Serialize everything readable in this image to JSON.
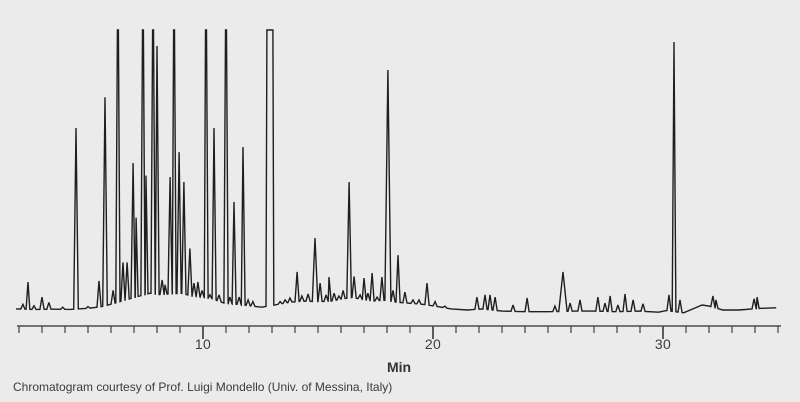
{
  "colors": {
    "background": "#ebebeb",
    "trace": "#1f1f1f",
    "axis": "#4c4c4c",
    "text": "#3a3a3a"
  },
  "labels": {
    "axis_title": "Min",
    "credit": "Chromatogram courtesy of Prof. Luigi Mondello (Univ. of Messina, Italy)"
  },
  "chart_data": {
    "type": "line",
    "title": "",
    "xlabel": "Min",
    "ylabel": "",
    "x_range": [
      2,
      35
    ],
    "x_start": 1.87,
    "x_end": 34.92,
    "x_ticks_minor_interval": 1,
    "x_ticks_minor_from": 2,
    "x_ticks_minor_to": 35,
    "x_ticks_labeled": [
      10,
      20,
      30
    ],
    "x_tick_labels": [
      "10",
      "20",
      "30"
    ],
    "grid": "off",
    "legend": "none",
    "y_axis_shown": false,
    "clip_level_note": "peaks with h=1.0 are off-scale and flat-topped at full height",
    "baseline": [
      [
        1.87,
        0.004
      ],
      [
        2.6,
        0.002
      ],
      [
        3.6,
        0.003
      ],
      [
        4.2,
        0.002
      ],
      [
        5.0,
        0.006
      ],
      [
        5.6,
        0.012
      ],
      [
        6.2,
        0.025
      ],
      [
        6.8,
        0.04
      ],
      [
        7.25,
        0.05
      ],
      [
        7.7,
        0.06
      ],
      [
        8.1,
        0.055
      ],
      [
        9.05,
        0.06
      ],
      [
        9.5,
        0.05
      ],
      [
        10.0,
        0.045
      ],
      [
        10.4,
        0.04
      ],
      [
        10.9,
        0.025
      ],
      [
        11.5,
        0.02
      ],
      [
        12.0,
        0.015
      ],
      [
        12.55,
        0.01
      ],
      [
        13.25,
        0.02
      ],
      [
        13.8,
        0.028
      ],
      [
        14.4,
        0.032
      ],
      [
        15.0,
        0.03
      ],
      [
        15.6,
        0.032
      ],
      [
        16.1,
        0.04
      ],
      [
        16.5,
        0.045
      ],
      [
        16.9,
        0.038
      ],
      [
        17.4,
        0.032
      ],
      [
        17.9,
        0.035
      ],
      [
        18.4,
        0.028
      ],
      [
        19.0,
        0.024
      ],
      [
        19.6,
        0.02
      ],
      [
        20.2,
        0.012
      ],
      [
        20.8,
        0.004
      ],
      [
        21.5,
        0.0
      ],
      [
        22.1,
        0.004
      ],
      [
        23.0,
        -0.004
      ],
      [
        24.0,
        -0.006
      ],
      [
        25.0,
        -0.006
      ],
      [
        26.2,
        -0.004
      ],
      [
        27.0,
        -0.004
      ],
      [
        28.0,
        -0.006
      ],
      [
        29.0,
        -0.004
      ],
      [
        29.8,
        -0.008
      ],
      [
        30.15,
        -0.002
      ],
      [
        30.9,
        -0.01
      ],
      [
        31.3,
        0.004
      ],
      [
        31.7,
        0.018
      ],
      [
        32.0,
        0.014
      ],
      [
        32.6,
        0.0
      ],
      [
        33.3,
        0.0
      ],
      [
        34.3,
        0.006
      ],
      [
        34.9,
        0.008
      ]
    ],
    "peaks": [
      {
        "t": 2.17,
        "h": 0.02
      },
      {
        "t": 2.39,
        "h": 0.1,
        "w": 0.08
      },
      {
        "t": 2.65,
        "h": 0.015
      },
      {
        "t": 3.0,
        "h": 0.046
      },
      {
        "t": 3.3,
        "h": 0.027
      },
      {
        "t": 3.9,
        "h": 0.01
      },
      {
        "t": 4.48,
        "h": 0.65,
        "w": 0.1
      },
      {
        "t": 5.0,
        "h": 0.012
      },
      {
        "t": 5.48,
        "h": 0.104
      },
      {
        "t": 5.74,
        "h": 0.76,
        "w": 0.1
      },
      {
        "t": 6.09,
        "h": 0.07
      },
      {
        "t": 6.3,
        "h": 1.0,
        "clip": true
      },
      {
        "t": 6.52,
        "h": 0.17
      },
      {
        "t": 6.7,
        "h": 0.17
      },
      {
        "t": 6.96,
        "h": 0.525
      },
      {
        "t": 7.09,
        "h": 0.33
      },
      {
        "t": 7.39,
        "h": 1.0,
        "clip": true
      },
      {
        "t": 7.52,
        "h": 0.48
      },
      {
        "t": 7.83,
        "h": 1.0,
        "clip": true
      },
      {
        "t": 8.0,
        "h": 0.943
      },
      {
        "t": 8.22,
        "h": 0.107
      },
      {
        "t": 8.35,
        "h": 0.09
      },
      {
        "t": 8.57,
        "h": 0.475
      },
      {
        "t": 8.74,
        "h": 1.0,
        "clip": true
      },
      {
        "t": 8.96,
        "h": 0.564
      },
      {
        "t": 9.17,
        "h": 0.457
      },
      {
        "t": 9.43,
        "h": 0.22
      },
      {
        "t": 9.61,
        "h": 0.096
      },
      {
        "t": 9.78,
        "h": 0.1
      },
      {
        "t": 9.96,
        "h": 0.07
      },
      {
        "t": 10.13,
        "h": 1.0,
        "clip": true
      },
      {
        "t": 10.3,
        "h": 0.054
      },
      {
        "t": 10.48,
        "h": 0.65
      },
      {
        "t": 10.7,
        "h": 0.054
      },
      {
        "t": 11.0,
        "h": 1.0,
        "clip": true
      },
      {
        "t": 11.17,
        "h": 0.046
      },
      {
        "t": 11.35,
        "h": 0.386
      },
      {
        "t": 11.57,
        "h": 0.046
      },
      {
        "t": 11.74,
        "h": 0.582
      },
      {
        "t": 11.96,
        "h": 0.036
      },
      {
        "t": 12.17,
        "h": 0.03
      },
      {
        "t": 12.91,
        "h": 1.0,
        "clip": true,
        "w": 0.17,
        "pw": 0.13
      },
      {
        "t": 13.35,
        "h": 0.03
      },
      {
        "t": 13.57,
        "h": 0.036
      },
      {
        "t": 13.78,
        "h": 0.043
      },
      {
        "t": 14.09,
        "h": 0.136
      },
      {
        "t": 14.3,
        "h": 0.05
      },
      {
        "t": 14.57,
        "h": 0.057
      },
      {
        "t": 14.87,
        "h": 0.257,
        "w": 0.12
      },
      {
        "t": 15.09,
        "h": 0.096
      },
      {
        "t": 15.35,
        "h": 0.054
      },
      {
        "t": 15.48,
        "h": 0.118
      },
      {
        "t": 15.7,
        "h": 0.06
      },
      {
        "t": 15.91,
        "h": 0.05
      },
      {
        "t": 16.09,
        "h": 0.07
      },
      {
        "t": 16.35,
        "h": 0.457,
        "w": 0.1
      },
      {
        "t": 16.57,
        "h": 0.12
      },
      {
        "t": 16.83,
        "h": 0.054
      },
      {
        "t": 17.0,
        "h": 0.114
      },
      {
        "t": 17.17,
        "h": 0.06
      },
      {
        "t": 17.35,
        "h": 0.132
      },
      {
        "t": 17.57,
        "h": 0.046
      },
      {
        "t": 17.78,
        "h": 0.118
      },
      {
        "t": 18.04,
        "h": 0.857,
        "w": 0.13
      },
      {
        "t": 18.26,
        "h": 0.07
      },
      {
        "t": 18.48,
        "h": 0.196
      },
      {
        "t": 18.78,
        "h": 0.064
      },
      {
        "t": 19.13,
        "h": 0.036
      },
      {
        "t": 19.39,
        "h": 0.036
      },
      {
        "t": 19.74,
        "h": 0.096
      },
      {
        "t": 20.09,
        "h": 0.03
      },
      {
        "t": 20.52,
        "h": 0.014
      },
      {
        "t": 21.91,
        "h": 0.046
      },
      {
        "t": 22.26,
        "h": 0.054
      },
      {
        "t": 22.48,
        "h": 0.054
      },
      {
        "t": 22.7,
        "h": 0.046
      },
      {
        "t": 23.48,
        "h": 0.018
      },
      {
        "t": 24.09,
        "h": 0.043
      },
      {
        "t": 25.3,
        "h": 0.014
      },
      {
        "t": 25.65,
        "h": 0.136,
        "w": 0.18
      },
      {
        "t": 25.96,
        "h": 0.025
      },
      {
        "t": 26.39,
        "h": 0.036
      },
      {
        "t": 27.17,
        "h": 0.046
      },
      {
        "t": 27.48,
        "h": 0.025
      },
      {
        "t": 27.7,
        "h": 0.05
      },
      {
        "t": 28.04,
        "h": 0.018
      },
      {
        "t": 28.35,
        "h": 0.057
      },
      {
        "t": 28.7,
        "h": 0.036
      },
      {
        "t": 29.13,
        "h": 0.022
      },
      {
        "t": 30.26,
        "h": 0.054
      },
      {
        "t": 30.48,
        "h": 0.957,
        "w": 0.08
      },
      {
        "t": 30.74,
        "h": 0.036
      },
      {
        "t": 32.17,
        "h": 0.05
      },
      {
        "t": 32.3,
        "h": 0.036
      },
      {
        "t": 33.96,
        "h": 0.04
      },
      {
        "t": 34.09,
        "h": 0.046
      }
    ]
  }
}
